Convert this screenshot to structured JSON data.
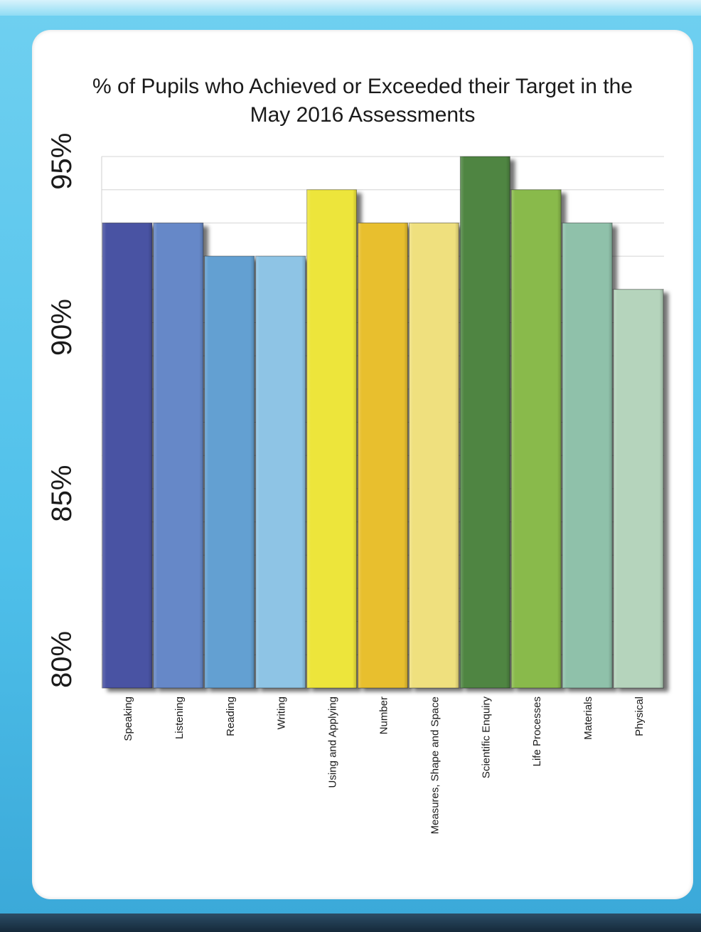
{
  "chart_data": {
    "type": "bar",
    "title": "% of Pupils who Achieved or Exceeded their Target in the\nMay 2016 Assessments",
    "xlabel": "",
    "ylabel": "",
    "categories": [
      "Speaking",
      "Listening",
      "Reading",
      "Writing",
      "Using and Applying",
      "Number",
      "Measures, Shape and Space",
      "Scientific Enquiry",
      "Life Processes",
      "Materials",
      "Physical"
    ],
    "values": [
      94,
      94,
      93,
      93,
      95,
      94,
      94,
      96,
      95,
      94,
      92
    ],
    "colors": [
      "#4a52a3",
      "#6688c8",
      "#64a0d2",
      "#8ec4e5",
      "#ede53a",
      "#e8bf2e",
      "#efe07e",
      "#4f8543",
      "#89ba4b",
      "#8fc1aa",
      "#b5d4bc"
    ],
    "ylim": [
      80,
      96
    ],
    "yticks": [
      80,
      85,
      90,
      95
    ],
    "ytick_labels": [
      "80%",
      "85%",
      "90%",
      "95%"
    ],
    "grid": true,
    "legend": "none"
  }
}
